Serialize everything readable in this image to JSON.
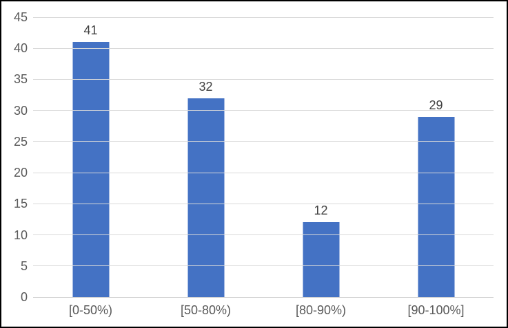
{
  "chart_data": {
    "type": "bar",
    "title": "",
    "categories": [
      "[0-50%)",
      "[50-80%)",
      "[80-90%)",
      "[90-100%]"
    ],
    "values": [
      41,
      32,
      12,
      29
    ],
    "value_labels": [
      "41",
      "32",
      "12",
      "29"
    ],
    "xlabel": "",
    "ylabel": "",
    "ylim": [
      0,
      45
    ],
    "y_axis": {
      "min": 0,
      "max": 45,
      "step": 5,
      "ticks": [
        "45",
        "40",
        "35",
        "30",
        "25",
        "20",
        "15",
        "10",
        "5",
        "0"
      ]
    },
    "grid": true,
    "legend": "none",
    "colors": {
      "bar": "#4472C4",
      "gridline": "#D9D9D9",
      "axis_label": "#595959",
      "value_label": "#404040",
      "frame_border": "#000000",
      "background": "#FFFFFF"
    }
  }
}
